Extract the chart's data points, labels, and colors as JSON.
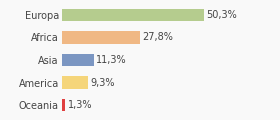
{
  "categories": [
    "Europa",
    "Africa",
    "Asia",
    "America",
    "Oceania"
  ],
  "values": [
    50.3,
    27.8,
    11.3,
    9.3,
    1.3
  ],
  "labels": [
    "50,3%",
    "27,8%",
    "11,3%",
    "9,3%",
    "1,3%"
  ],
  "bar_colors": [
    "#b5cc8e",
    "#f0b884",
    "#7b96c2",
    "#f5d57a",
    "#e04040"
  ],
  "background_color": "#f9f9f9",
  "xlim": [
    0,
    75
  ],
  "label_fontsize": 7.0,
  "tick_fontsize": 7.0,
  "bar_height": 0.55
}
